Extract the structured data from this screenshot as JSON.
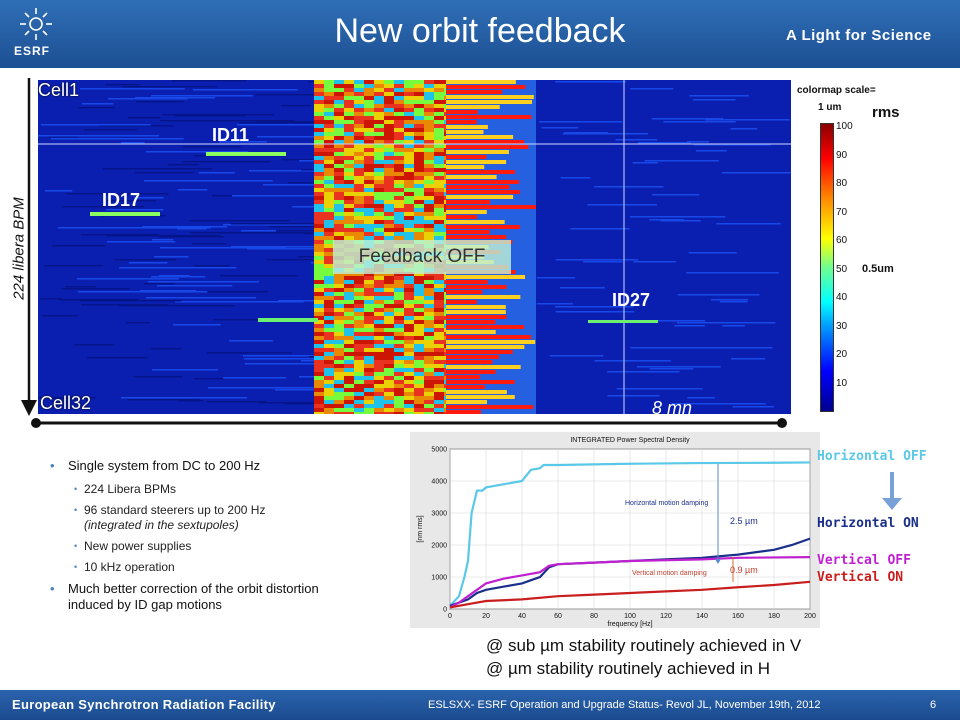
{
  "header": {
    "logo_text": "ESRF",
    "title": "New orbit feedback",
    "tagline": "A Light for Science"
  },
  "heatmap": {
    "top_label": "Cell1",
    "bottom_label": "Cell32",
    "y_axis_label": "224 libera BPM",
    "time_label": "8 mn",
    "annotations": {
      "id11": "ID11",
      "id17": "ID17",
      "id27": "ID27"
    },
    "feedback_off_label": "Feedback OFF"
  },
  "colorbar": {
    "title_line1": "colormap scale=",
    "title_line2": "1 um",
    "rms_label": "rms",
    "half_um_label": "0.5um",
    "ticks": [
      "100",
      "90",
      "80",
      "70",
      "60",
      "50",
      "40",
      "30",
      "20",
      "10"
    ]
  },
  "bullets": {
    "b1": "Single system from DC to 200 Hz",
    "sub1": "224 Libera BPMs",
    "sub2": "96 standard steerers up to 200 Hz",
    "sub2_note": "(integrated in the sextupoles)",
    "sub3": "New power supplies",
    "sub4": "10 kHz operation",
    "b2": "Much better correction of the orbit distortion induced by ID gap motions"
  },
  "psd_plot": {
    "title": "INTEGRATED Power Spectral Density",
    "xlabel": "frequency [Hz]",
    "ylabel": "[nm rms]",
    "h_annotation": "Horizontal motion damping",
    "v_annotation": "Vertical motion damping",
    "h_value": "2.5 µm",
    "v_value": "0.9 µm"
  },
  "legend": {
    "h_off": "Horizontal OFF",
    "h_on": "Horizontal ON",
    "v_off": "Vertical OFF",
    "v_on": "Vertical ON"
  },
  "stability": {
    "line1": "@ sub µm stability routinely achieved in V",
    "line2": "@ µm stability routinely achieved in H"
  },
  "footer": {
    "org": "European Synchrotron Radiation Facility",
    "citation": "ESLSXX- ESRF Operation and Upgrade Status- Revol JL, November 19th, 2012",
    "page": "6"
  },
  "colors": {
    "header_blue": "#1d4f93",
    "h_off": "#5ac8e6",
    "h_on": "#1a2f8a",
    "v_off": "#c020d0",
    "v_on": "#c81e1e"
  },
  "chart_data": {
    "type": "line",
    "title": "INTEGRATED Power Spectral Density",
    "xlabel": "frequency [Hz]",
    "ylabel": "[nm rms]",
    "xlim": [
      0,
      200
    ],
    "ylim": [
      0,
      5000
    ],
    "x_ticks": [
      0,
      20,
      40,
      60,
      80,
      100,
      120,
      140,
      160,
      180,
      200
    ],
    "y_ticks": [
      0,
      1000,
      2000,
      3000,
      4000,
      5000
    ],
    "grid": true,
    "legend": "right",
    "series": [
      {
        "name": "Horizontal OFF",
        "color": "#5ac8e6",
        "x": [
          0,
          5,
          8,
          10,
          12,
          15,
          18,
          20,
          30,
          40,
          45,
          50,
          52,
          55,
          60,
          80,
          100,
          140,
          180,
          200
        ],
        "y": [
          100,
          400,
          1000,
          1500,
          3000,
          3700,
          3700,
          3800,
          3900,
          4000,
          4350,
          4400,
          4500,
          4500,
          4500,
          4520,
          4540,
          4560,
          4570,
          4580
        ]
      },
      {
        "name": "Horizontal ON",
        "color": "#1a2f8a",
        "x": [
          0,
          5,
          10,
          15,
          20,
          30,
          40,
          45,
          50,
          55,
          60,
          80,
          100,
          120,
          140,
          160,
          180,
          190,
          200
        ],
        "y": [
          100,
          200,
          300,
          500,
          600,
          700,
          800,
          900,
          1000,
          1300,
          1400,
          1450,
          1500,
          1550,
          1600,
          1700,
          1850,
          2000,
          2200
        ]
      },
      {
        "name": "Vertical OFF",
        "color": "#c020d0",
        "x": [
          0,
          5,
          10,
          15,
          20,
          30,
          40,
          50,
          55,
          60,
          80,
          100,
          140,
          160,
          200
        ],
        "y": [
          50,
          200,
          400,
          600,
          800,
          950,
          1050,
          1150,
          1350,
          1400,
          1450,
          1500,
          1550,
          1600,
          1620
        ]
      },
      {
        "name": "Vertical ON",
        "color": "#c81e1e",
        "x": [
          0,
          10,
          20,
          40,
          60,
          80,
          100,
          120,
          140,
          160,
          180,
          200
        ],
        "y": [
          50,
          150,
          250,
          300,
          400,
          450,
          500,
          550,
          600,
          680,
          750,
          850
        ]
      }
    ]
  }
}
